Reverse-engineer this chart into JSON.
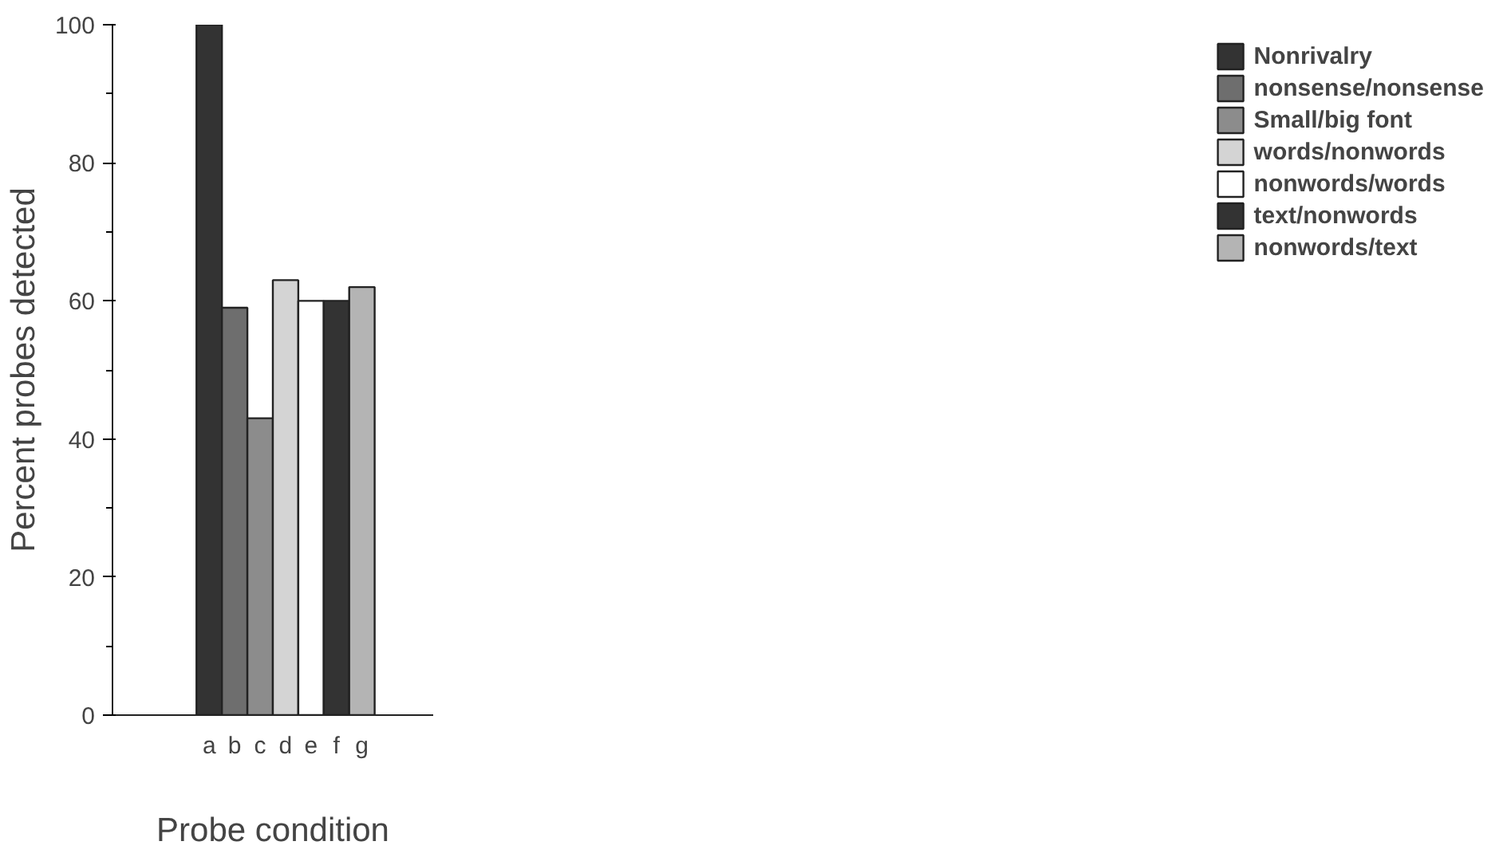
{
  "chart_data": {
    "type": "bar",
    "xlabel": "Probe condition",
    "ylabel": "Percent probes detected",
    "categories": [
      "a",
      "b",
      "c",
      "d",
      "e",
      "f",
      "g"
    ],
    "series": [
      {
        "name": "Nonrivalry",
        "color": "#333333",
        "values": [
          100,
          null,
          null,
          null,
          null,
          null,
          null
        ]
      },
      {
        "name": "nonsense/nonsense",
        "color": "#6e6e6e",
        "values": [
          null,
          59,
          null,
          null,
          null,
          null,
          null
        ]
      },
      {
        "name": "Small/big font",
        "color": "#8c8c8c",
        "values": [
          null,
          null,
          43,
          null,
          null,
          null,
          null
        ]
      },
      {
        "name": "words/nonwords",
        "color": "#d4d4d4",
        "values": [
          null,
          null,
          null,
          63,
          null,
          null,
          null
        ]
      },
      {
        "name": "nonwords/words",
        "color": "#ffffff",
        "values": [
          null,
          null,
          null,
          null,
          60,
          null,
          null
        ]
      },
      {
        "name": "text/nonwords",
        "color": "#333333",
        "values": [
          null,
          null,
          null,
          null,
          null,
          60,
          null
        ]
      },
      {
        "name": "nonwords/text",
        "color": "#b4b4b4",
        "values": [
          null,
          null,
          null,
          null,
          null,
          null,
          62
        ]
      }
    ],
    "ylim": [
      0,
      100
    ],
    "yticks": [
      0,
      20,
      40,
      60,
      80,
      100
    ],
    "grid": false,
    "legend": "right"
  }
}
